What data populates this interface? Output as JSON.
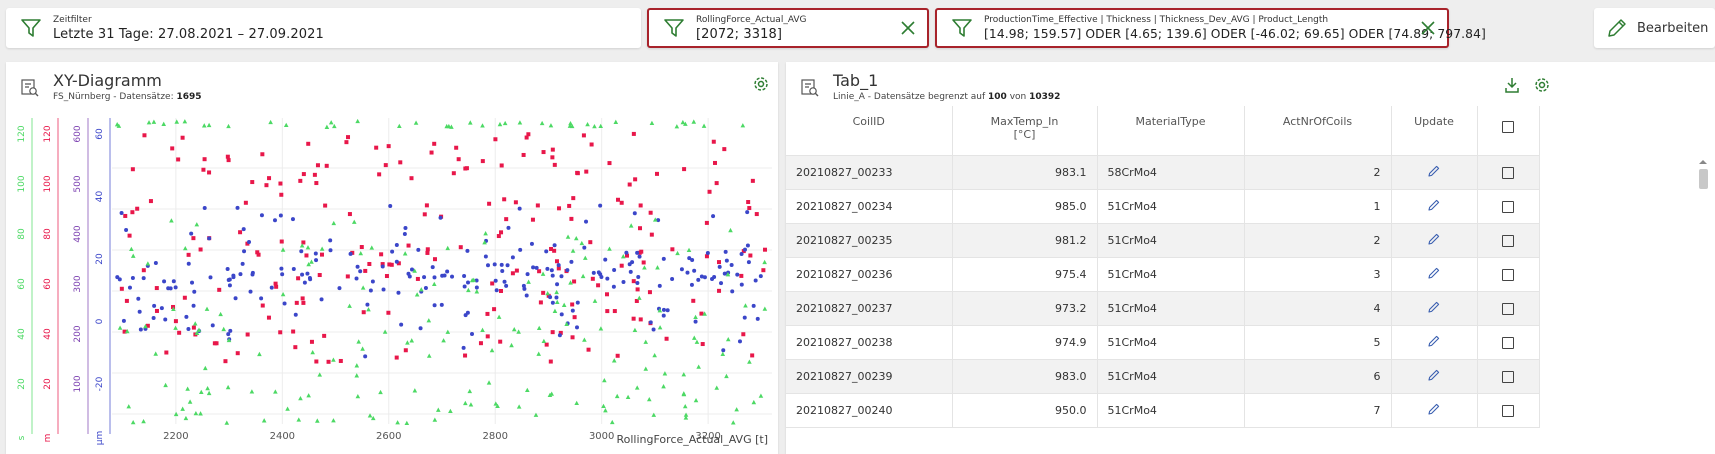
{
  "filters": {
    "time": {
      "label": "Zeitfilter",
      "value": "Letzte 31 Tage: 27.08.2021 – 27.09.2021"
    },
    "rolling": {
      "label": "RollingForce_Actual_AVG",
      "value": "[2072; 3318]"
    },
    "production": {
      "label": "ProductionTime_Effective | Thickness | Thickness_Dev_AVG | Product_Length",
      "value": "[14.98; 159.57] ODER [4.65; 139.6] ODER [-46.02; 69.65] ODER [74.89; 797.84]"
    }
  },
  "edit_button": {
    "label": "Bearbeiten"
  },
  "xy_panel": {
    "title": "XY-Diagramm",
    "subtitle_prefix": "FS_Nürnberg - Datensätze: ",
    "subtitle_count": "1695"
  },
  "table_panel": {
    "title": "Tab_1",
    "subtitle_prefix": "Linie_A - Datensätze begrenzt auf ",
    "subtitle_limit": "100",
    "subtitle_mid": " von ",
    "subtitle_total": "10392",
    "columns": [
      "CoilID",
      "MaxTemp_In",
      "MaterialType",
      "ActNrOfCoils",
      "Update"
    ],
    "maxtemp_unit": "[°C]",
    "rows": [
      [
        "20210827_00233",
        "983.1",
        "58CrMo4",
        "2"
      ],
      [
        "20210827_00234",
        "985.0",
        "51CrMo4",
        "1"
      ],
      [
        "20210827_00235",
        "981.2",
        "51CrMo4",
        "2"
      ],
      [
        "20210827_00236",
        "975.4",
        "51CrMo4",
        "3"
      ],
      [
        "20210827_00237",
        "973.2",
        "51CrMo4",
        "4"
      ],
      [
        "20210827_00238",
        "974.9",
        "51CrMo4",
        "5"
      ],
      [
        "20210827_00239",
        "983.0",
        "51CrMo4",
        "6"
      ],
      [
        "20210827_00240",
        "950.0",
        "51CrMo4",
        "7"
      ]
    ]
  },
  "colors": {
    "accent_red": "#a8232b",
    "icon_green": "#2e7d32",
    "series_red": "#e8174a",
    "series_blue": "#3b46c9",
    "series_green": "#4cd964"
  },
  "chart_data": {
    "type": "scatter",
    "xlabel": "RollingForce_Actual_AVG [t]",
    "xlim": [
      2080,
      3320
    ],
    "xticks": [
      "2200",
      "2400",
      "2600",
      "2800",
      "3000",
      "3200"
    ],
    "axes": [
      {
        "unit": "s",
        "color": "#4cd964",
        "ticks": [
          "20",
          "40",
          "60",
          "80",
          "100",
          "120"
        ]
      },
      {
        "unit": "m",
        "color": "#e8174a",
        "ticks": [
          "20",
          "40",
          "60",
          "80",
          "100",
          "120"
        ]
      },
      {
        "unit": "",
        "color": "#7b3fb0",
        "ticks": [
          "100",
          "200",
          "300",
          "400",
          "500",
          "600"
        ]
      },
      {
        "unit": "µm",
        "color": "#3b46c9",
        "ticks": [
          "-20",
          "0",
          "20",
          "40",
          "60"
        ]
      }
    ],
    "series": [
      {
        "marker": "square",
        "color": "#e8174a",
        "y_min": 0.2,
        "y_max": 0.95
      },
      {
        "marker": "circle",
        "color": "#3b46c9",
        "y_min": 0.25,
        "y_max": 0.85
      },
      {
        "marker": "triangle",
        "color": "#4cd964",
        "y_min": 0.0,
        "y_max": 1.0
      }
    ]
  }
}
